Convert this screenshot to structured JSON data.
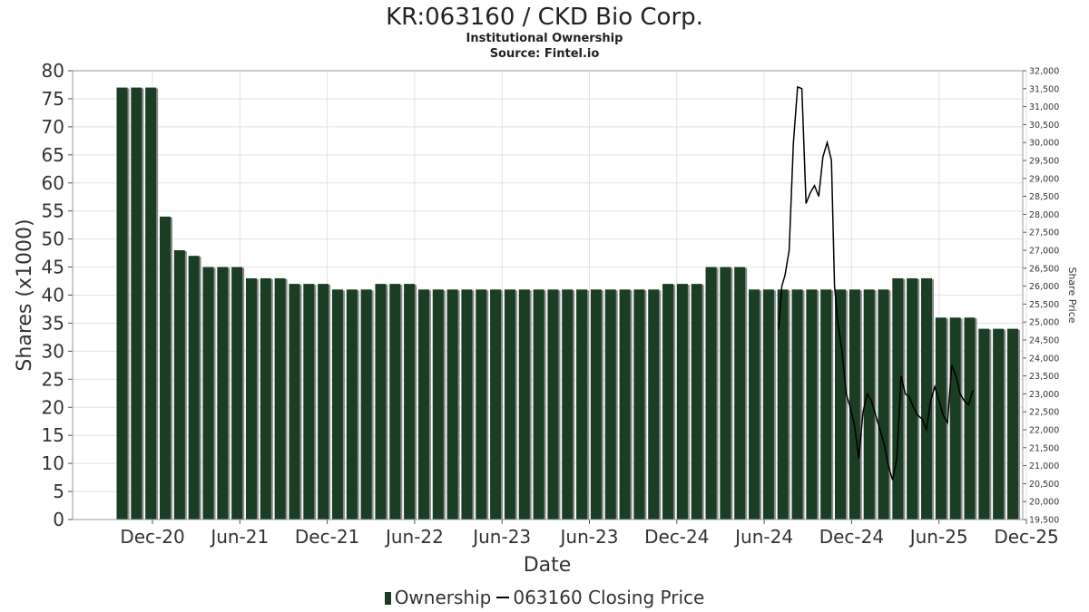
{
  "chart_data": {
    "type": "bar",
    "title": "KR:063160 / CKD Bio Corp.",
    "subtitle": "Institutional Ownership",
    "source": "Source: Fintel.io",
    "xlabel": "Date",
    "ylabel": "Shares (x1000)",
    "y2label": "Share Price",
    "ylim": [
      0,
      80
    ],
    "y2lim": [
      19500,
      32000
    ],
    "grid": true,
    "legend_position": "bottom",
    "x_ticks": [
      "Dec-20",
      "Jun-21",
      "Dec-21",
      "Jun-22",
      "Jun-23",
      "Jun-23",
      "Dec-24",
      "Jun-24",
      "Dec-24",
      "Jun-25",
      "Dec-25"
    ],
    "y_ticks": [
      0,
      5,
      10,
      15,
      20,
      25,
      30,
      35,
      40,
      45,
      50,
      55,
      60,
      65,
      70,
      75,
      80
    ],
    "y2_ticks": [
      "19,500",
      "20,000",
      "20,500",
      "21,000",
      "21,500",
      "22,000",
      "22,500",
      "23,000",
      "23,500",
      "24,000",
      "24,500",
      "25,000",
      "25,500",
      "26,000",
      "26,500",
      "27,000",
      "27,500",
      "28,000",
      "28,500",
      "29,000",
      "29,500",
      "30,000",
      "30,500",
      "31,000",
      "31,500",
      "32,000"
    ],
    "series": [
      {
        "name": "Ownership",
        "color": "#1a3d24",
        "values": [
          77,
          77,
          77,
          54,
          48,
          47,
          45,
          45,
          45,
          43,
          43,
          43,
          42,
          42,
          42,
          41,
          41,
          41,
          42,
          42,
          42,
          41,
          41,
          41,
          41,
          41,
          41,
          41,
          41,
          41,
          41,
          41,
          41,
          41,
          41,
          41,
          41,
          41,
          42,
          42,
          42,
          45,
          45,
          45,
          41,
          41,
          41,
          41,
          41,
          41,
          41,
          41,
          41,
          41,
          43,
          43,
          43,
          36,
          36,
          36,
          34,
          34,
          34
        ]
      },
      {
        "name": "063160 Closing Price",
        "color": "#000000",
        "points": [
          [
            0.0,
            24800
          ],
          [
            0.3,
            26000
          ],
          [
            0.6,
            26300
          ],
          [
            1.0,
            27000
          ],
          [
            1.4,
            30000
          ],
          [
            1.8,
            31550
          ],
          [
            2.2,
            31500
          ],
          [
            2.6,
            28300
          ],
          [
            3.0,
            28600
          ],
          [
            3.4,
            28800
          ],
          [
            3.8,
            28500
          ],
          [
            4.2,
            29600
          ],
          [
            4.6,
            30000
          ],
          [
            5.0,
            29500
          ],
          [
            5.3,
            26000
          ],
          [
            5.6,
            25000
          ],
          [
            6.0,
            24200
          ],
          [
            6.4,
            23000
          ],
          [
            6.8,
            22600
          ],
          [
            7.2,
            22100
          ],
          [
            7.6,
            21200
          ],
          [
            8.0,
            22500
          ],
          [
            8.4,
            23000
          ],
          [
            8.8,
            22800
          ],
          [
            9.2,
            22400
          ],
          [
            9.6,
            22000
          ],
          [
            10.0,
            21600
          ],
          [
            10.4,
            21000
          ],
          [
            10.8,
            20600
          ],
          [
            11.2,
            21200
          ],
          [
            11.6,
            23500
          ],
          [
            12.0,
            23000
          ],
          [
            12.4,
            22900
          ],
          [
            12.8,
            22600
          ],
          [
            13.2,
            22400
          ],
          [
            13.6,
            22300
          ],
          [
            14.0,
            22000
          ],
          [
            14.4,
            22800
          ],
          [
            14.8,
            23200
          ],
          [
            15.2,
            22800
          ],
          [
            15.6,
            22400
          ],
          [
            16.0,
            22200
          ],
          [
            16.4,
            23800
          ],
          [
            16.8,
            23500
          ],
          [
            17.2,
            23000
          ],
          [
            17.6,
            22800
          ],
          [
            18.0,
            22700
          ],
          [
            18.4,
            23100
          ]
        ]
      }
    ]
  },
  "legend": {
    "ownership_label": "Ownership",
    "price_label": "063160 Closing Price"
  }
}
